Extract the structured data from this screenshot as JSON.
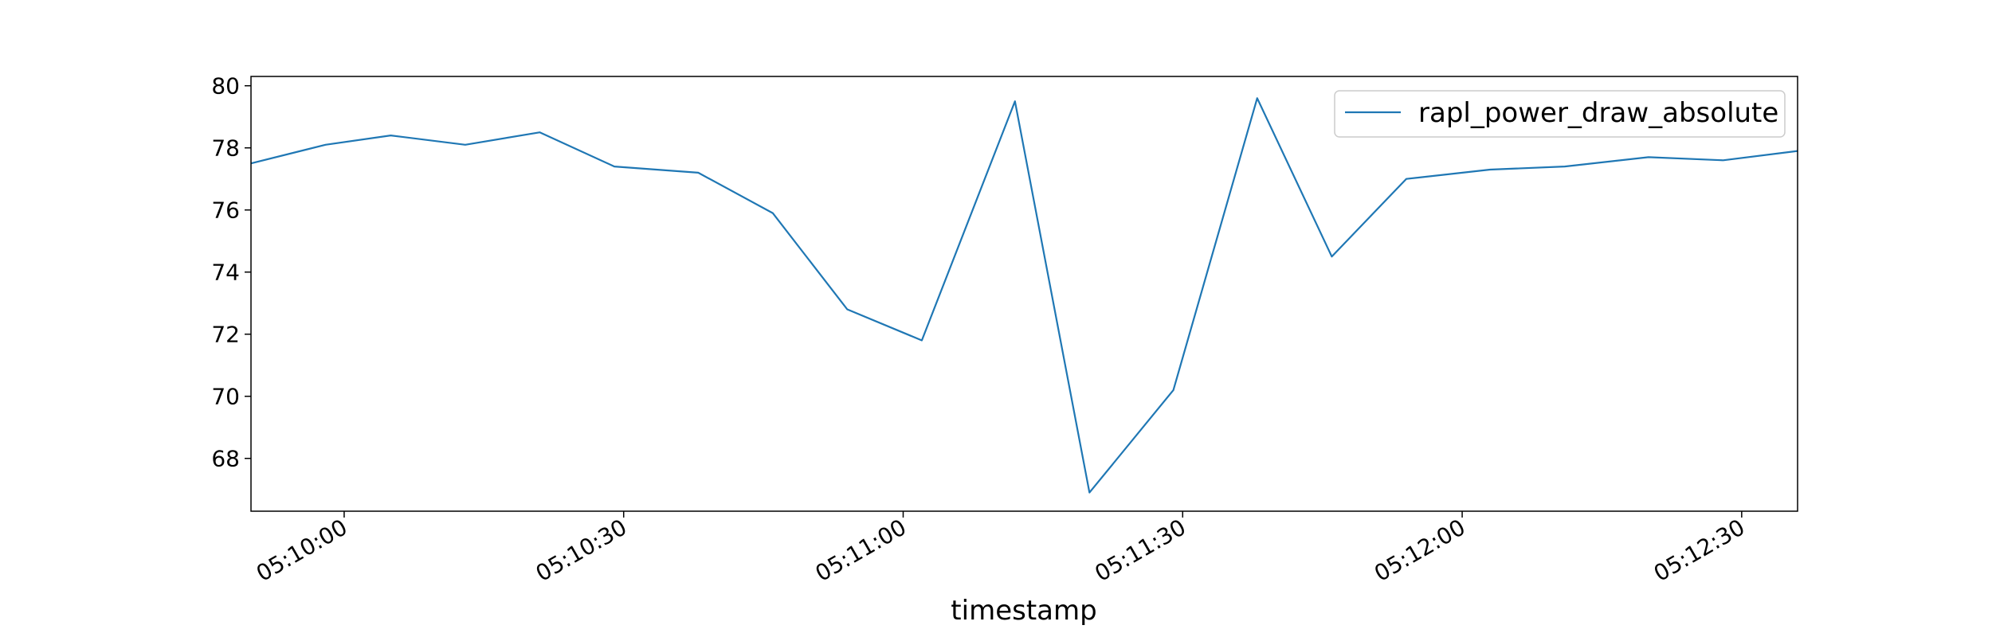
{
  "chart_data": {
    "type": "line",
    "title": "",
    "xlabel": "timestamp",
    "ylabel": "",
    "x": [
      "05:09:50",
      "05:09:58",
      "05:10:05",
      "05:10:13",
      "05:10:21",
      "05:10:29",
      "05:10:38",
      "05:10:46",
      "05:10:54",
      "05:11:02",
      "05:11:12",
      "05:11:20",
      "05:11:29",
      "05:11:38",
      "05:11:46",
      "05:11:54",
      "05:12:03",
      "05:12:11",
      "05:12:20",
      "05:12:28",
      "05:12:36"
    ],
    "series": [
      {
        "name": "rapl_power_draw_absolute",
        "color": "#1f77b4",
        "values": [
          77.5,
          78.1,
          78.4,
          78.1,
          78.5,
          77.4,
          77.2,
          75.9,
          72.8,
          71.8,
          79.5,
          66.9,
          70.2,
          79.6,
          74.5,
          77.0,
          77.3,
          77.4,
          77.7,
          77.6,
          77.9
        ]
      }
    ],
    "xlim": [
      "05:09:50",
      "05:12:36"
    ],
    "ylim": [
      66.3,
      80.3
    ],
    "x_ticks": [
      "05:10:00",
      "05:10:30",
      "05:11:00",
      "05:11:30",
      "05:12:00",
      "05:12:30"
    ],
    "y_ticks": [
      68,
      70,
      72,
      74,
      76,
      78,
      80
    ],
    "legend_position": "top-right",
    "grid": false
  }
}
